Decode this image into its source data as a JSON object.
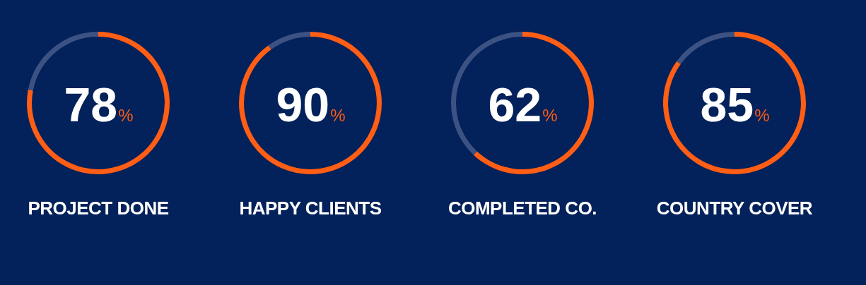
{
  "chart_data": [
    {
      "type": "donut",
      "title": "PROJECT DONE",
      "categories": [
        null,
        null
      ],
      "values": [
        78,
        22
      ],
      "colors": [
        "#ff5e14",
        "#3b5283"
      ],
      "value_labels": [
        "78%",
        null
      ],
      "legend": false
    },
    {
      "type": "donut",
      "title": "HAPPY CLIENTS",
      "categories": [
        null,
        null
      ],
      "values": [
        90,
        10
      ],
      "colors": [
        "#ff5e14",
        "#3b5283"
      ],
      "value_labels": [
        "90%",
        null
      ],
      "legend": false
    },
    {
      "type": "donut",
      "title": "COMPLETED CO.",
      "categories": [
        null,
        null
      ],
      "values": [
        62,
        38
      ],
      "colors": [
        "#ff5e14",
        "#3b5283"
      ],
      "value_labels": [
        "62%",
        null
      ],
      "legend": false
    },
    {
      "type": "donut",
      "title": "COUNTRY COVER",
      "categories": [
        null,
        null
      ],
      "values": [
        85,
        15
      ],
      "colors": [
        "#ff5e14",
        "#3b5283"
      ],
      "value_labels": [
        "85%",
        null
      ],
      "legend": false
    }
  ]
}
